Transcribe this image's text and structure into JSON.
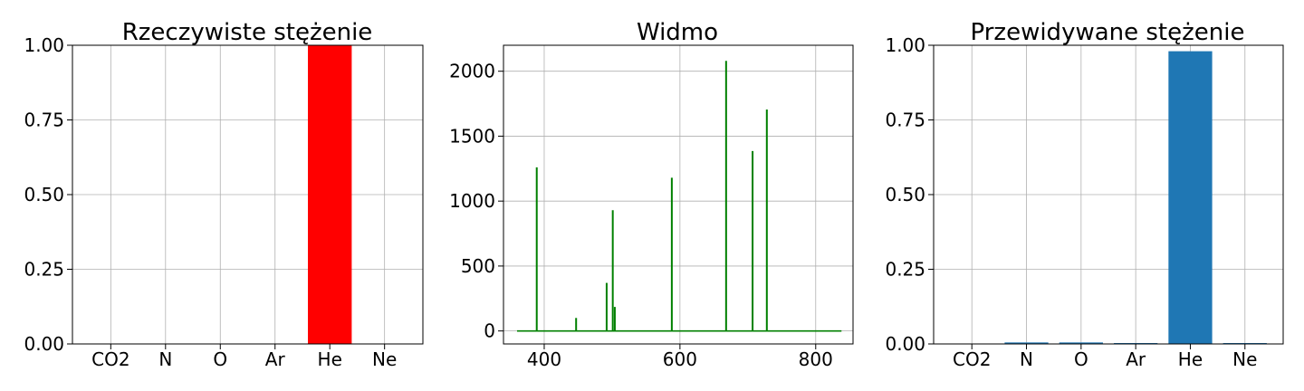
{
  "chart_data": [
    {
      "type": "bar",
      "title": "Rzeczywiste stężenie",
      "categories": [
        "CO2",
        "N",
        "O",
        "Ar",
        "He",
        "Ne"
      ],
      "values": [
        0,
        0,
        0,
        0,
        1.0,
        0
      ],
      "ylim": [
        0,
        1
      ],
      "yticks": [
        "0.00",
        "0.25",
        "0.50",
        "0.75",
        "1.00"
      ],
      "color": "#ff0000",
      "grid": true
    },
    {
      "type": "line",
      "title": "Widmo",
      "xlim": [
        340,
        855
      ],
      "ylim": [
        -100,
        2200
      ],
      "xticks": [
        "400",
        "600",
        "800"
      ],
      "yticks": [
        "0",
        "500",
        "1000",
        "1500",
        "2000"
      ],
      "color": "#008000",
      "x_range": [
        360,
        838
      ],
      "baseline": 0,
      "peaks": [
        {
          "x": 389,
          "y": 1260
        },
        {
          "x": 447,
          "y": 100
        },
        {
          "x": 492,
          "y": 370
        },
        {
          "x": 501,
          "y": 930
        },
        {
          "x": 504,
          "y": 185
        },
        {
          "x": 588,
          "y": 1180
        },
        {
          "x": 668,
          "y": 2080
        },
        {
          "x": 707,
          "y": 1385
        },
        {
          "x": 728,
          "y": 1705
        }
      ],
      "grid": true
    },
    {
      "type": "bar",
      "title": "Przewidywane stężenie",
      "categories": [
        "CO2",
        "N",
        "O",
        "Ar",
        "He",
        "Ne"
      ],
      "values": [
        0.0,
        0.005,
        0.005,
        0.003,
        0.98,
        0.003
      ],
      "ylim": [
        0,
        1
      ],
      "yticks": [
        "0.00",
        "0.25",
        "0.50",
        "0.75",
        "1.00"
      ],
      "color": "#1f77b4",
      "grid": true
    }
  ]
}
